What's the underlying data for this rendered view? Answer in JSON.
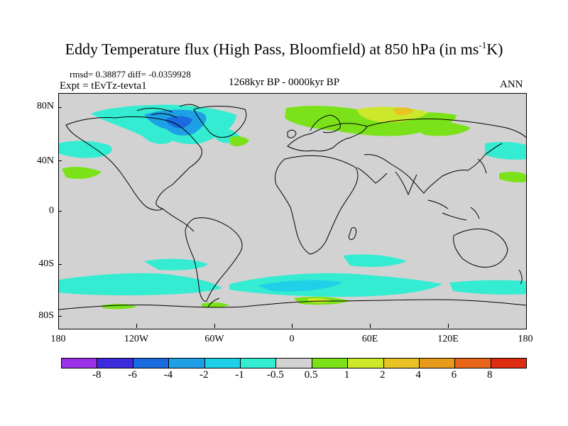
{
  "title": {
    "main": "Eddy Temperature flux (High Pass, Bloomfield) at 850 hPa (in ms",
    "sup": "-1",
    "tail": "K)"
  },
  "meta": {
    "rmsd": "rmsd= 0.38877 diff= -0.0359928",
    "expt": "Expt = tEvTz-tevta1",
    "range": "1268kyr BP - 0000kyr BP",
    "season": "ANN"
  },
  "map": {
    "lat_labels": [
      "80N",
      "40N",
      "0",
      "40S",
      "80S"
    ],
    "lon_labels": [
      "180",
      "120W",
      "60W",
      "0",
      "60E",
      "120E",
      "180"
    ],
    "background_color": "#d2d2d2"
  },
  "colorbar": {
    "colors": [
      "#9b30e8",
      "#3b2bdd",
      "#1a6ae0",
      "#1fa0e6",
      "#1fd0e8",
      "#34ecd2",
      "#d2d2d2",
      "#7be21a",
      "#cde82a",
      "#e8c323",
      "#e89a1a",
      "#e8651a",
      "#dd2c0f"
    ],
    "labels": [
      "-8",
      "-6",
      "-4",
      "-2",
      "-1",
      "-0.5",
      "0.5",
      "1",
      "2",
      "4",
      "6",
      "8"
    ]
  }
}
